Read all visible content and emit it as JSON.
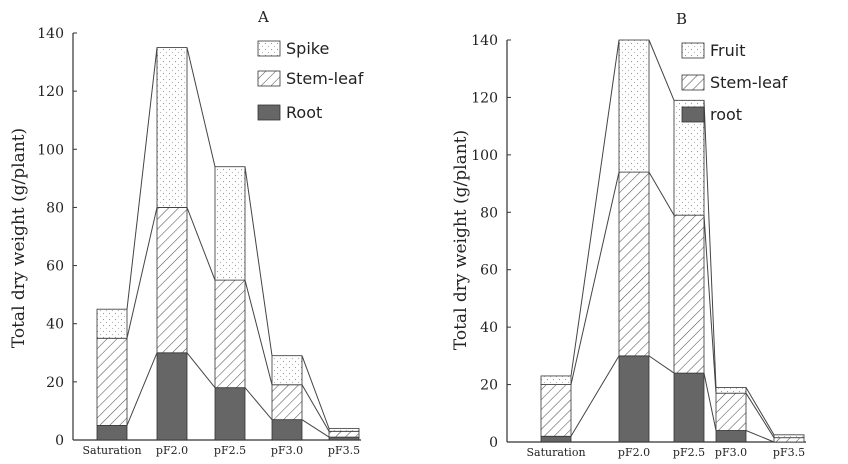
{
  "chart_data": [
    {
      "type": "bar",
      "stacked": true,
      "panel_label": "A",
      "ylabel": "Total dry weight (g/plant)",
      "ylim": [
        0,
        140
      ],
      "yticks": [
        "0",
        "20",
        "40",
        "60",
        "80",
        "100",
        "120",
        "140"
      ],
      "categories": [
        "Saturation",
        "pF2.0",
        "pF2.5",
        "pF3.0",
        "pF3.5"
      ],
      "legend_position": "top-right",
      "series": [
        {
          "name": "Root",
          "pattern": "solid",
          "values": [
            5,
            30,
            18,
            7,
            1
          ]
        },
        {
          "name": "Stem-leaf",
          "pattern": "hatch",
          "values": [
            30,
            50,
            37,
            12,
            2
          ]
        },
        {
          "name": "Spike",
          "pattern": "dots",
          "values": [
            10,
            55,
            39,
            10,
            1
          ]
        }
      ],
      "cumulative_tops": [
        45,
        135,
        94,
        29,
        4
      ],
      "legend_order": [
        "Spike",
        "Stem-leaf",
        "Root"
      ]
    },
    {
      "type": "bar",
      "stacked": true,
      "panel_label": "B",
      "ylabel": "Total dry weight (g/plant)",
      "ylim": [
        0,
        140
      ],
      "yticks": [
        "0",
        "20",
        "40",
        "60",
        "80",
        "100",
        "120",
        "140"
      ],
      "categories": [
        "Saturation",
        "pF2.0",
        "pF2.5",
        "pF3.0",
        "pF3.5"
      ],
      "legend_position": "top-right",
      "series": [
        {
          "name": "root",
          "pattern": "solid",
          "values": [
            2,
            30,
            24,
            4,
            0
          ]
        },
        {
          "name": "Stem-leaf",
          "pattern": "hatch",
          "values": [
            18,
            64,
            55,
            13,
            1.5
          ]
        },
        {
          "name": "Fruit",
          "pattern": "dots",
          "values": [
            3,
            46,
            40,
            2,
            1
          ]
        }
      ],
      "cumulative_tops": [
        23,
        140,
        119,
        19,
        2.5
      ],
      "legend_order": [
        "Fruit",
        "Stem-leaf",
        "root"
      ]
    }
  ],
  "colors": {
    "root_fill": "#666666",
    "outline": "#333333",
    "hatch": "#555555",
    "dots": "#aaaaaa"
  }
}
